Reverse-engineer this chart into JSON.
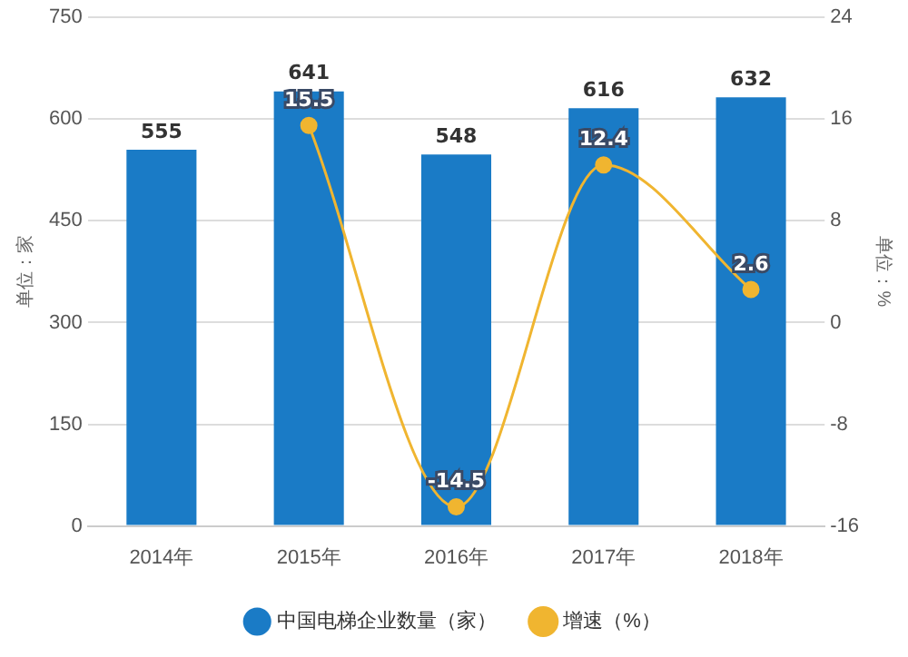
{
  "chart_data": {
    "type": "bar",
    "categories": [
      "2014年",
      "2015年",
      "2016年",
      "2017年",
      "2018年"
    ],
    "ylabel": "单位：家",
    "y2label": "单位：%",
    "ylim": [
      0,
      750
    ],
    "yticks": [
      0,
      150,
      300,
      450,
      600,
      750
    ],
    "y2lim": [
      -16,
      24
    ],
    "y2ticks": [
      -16,
      -8,
      0,
      8,
      16,
      24
    ],
    "series": [
      {
        "name": "中国电梯企业数量（家）",
        "color": "#1a7bc6",
        "values": [
          555,
          641,
          548,
          616,
          632
        ]
      },
      {
        "name": "增速（%）",
        "type": "line",
        "axis": "y2",
        "color": "#f0b530",
        "values": [
          null,
          15.5,
          -14.5,
          12.4,
          2.6
        ]
      }
    ],
    "data_labels": true,
    "grid": "y",
    "legend": "bottom",
    "marker": "circle"
  }
}
